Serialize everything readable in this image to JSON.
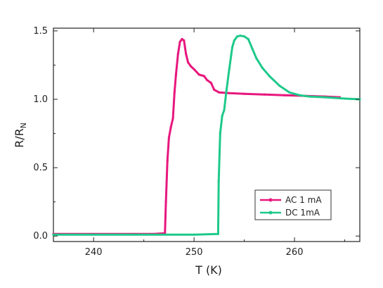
{
  "chart_data": {
    "type": "line",
    "title": "",
    "xlabel": "T (K)",
    "ylabel_main": "R/R",
    "ylabel_sub": "N",
    "xlim": [
      236,
      266.5
    ],
    "ylim": [
      -0.04,
      1.52
    ],
    "xticks": [
      240,
      250,
      260
    ],
    "yticks": [
      0.0,
      0.5,
      1.0,
      1.5
    ],
    "ytick_labels": [
      "0.0",
      "0.5",
      "1.0",
      "1.5"
    ],
    "grid": false,
    "legend_position": "bottom-right",
    "series": [
      {
        "name": "AC 1 mA",
        "color": "#e8177d",
        "x": [
          236,
          244,
          246,
          247.1,
          247.2,
          247.35,
          247.5,
          247.7,
          247.9,
          248.05,
          248.2,
          248.4,
          248.6,
          248.8,
          249.0,
          249.2,
          249.4,
          249.7,
          250.0,
          250.5,
          251.0,
          251.3,
          251.7,
          252.0,
          252.5,
          253.5,
          255,
          257,
          259,
          261,
          263,
          264.5
        ],
        "y": [
          0.015,
          0.015,
          0.015,
          0.02,
          0.25,
          0.55,
          0.72,
          0.8,
          0.86,
          1.05,
          1.18,
          1.33,
          1.42,
          1.44,
          1.43,
          1.33,
          1.27,
          1.24,
          1.22,
          1.18,
          1.17,
          1.14,
          1.12,
          1.07,
          1.05,
          1.045,
          1.04,
          1.035,
          1.03,
          1.025,
          1.02,
          1.015
        ]
      },
      {
        "name": "DC 1mA",
        "color": "#1ec98a",
        "x": [
          236,
          250,
          252.4,
          252.45,
          252.6,
          252.8,
          253.0,
          253.2,
          253.5,
          253.8,
          254.0,
          254.3,
          254.6,
          255.0,
          255.4,
          255.8,
          256.2,
          256.8,
          257.5,
          258.5,
          259.5,
          260.5,
          261.5,
          263,
          265,
          266.5
        ],
        "y": [
          0.01,
          0.01,
          0.015,
          0.4,
          0.75,
          0.88,
          0.92,
          1.05,
          1.22,
          1.38,
          1.43,
          1.46,
          1.465,
          1.46,
          1.44,
          1.37,
          1.3,
          1.23,
          1.17,
          1.1,
          1.05,
          1.03,
          1.02,
          1.015,
          1.005,
          1.0
        ]
      }
    ]
  }
}
